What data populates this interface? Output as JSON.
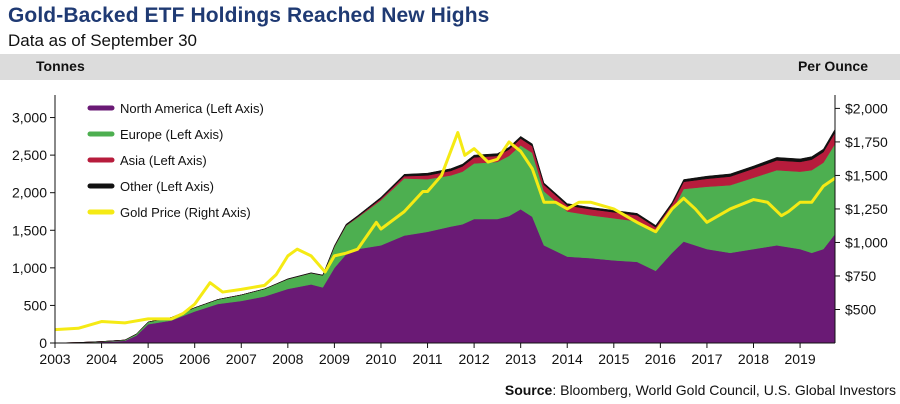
{
  "chart_data": {
    "type": "area",
    "title": "Gold-Backed ETF Holdings Reached New Highs",
    "subtitle": "Data as of September 30",
    "ylabel_left": "Tonnes",
    "ylabel_right": "Per Ounce",
    "source_label": "Source",
    "source_text": ": Bloomberg, World Gold Council, U.S. Global Investors",
    "xlim": [
      2003,
      2019.75
    ],
    "ylim_left": [
      0,
      3300
    ],
    "ylim_right": [
      250,
      2100
    ],
    "x_ticks": [
      2003,
      2004,
      2005,
      2006,
      2007,
      2008,
      2009,
      2010,
      2011,
      2012,
      2013,
      2014,
      2015,
      2016,
      2017,
      2018,
      2019
    ],
    "x_tick_labels": [
      "2003",
      "2004",
      "2005",
      "2006",
      "2007",
      "2008",
      "2009",
      "2010",
      "2011",
      "2012",
      "2013",
      "2014",
      "2015",
      "2016",
      "2017",
      "2018",
      "2019"
    ],
    "y_left_ticks": [
      0,
      500,
      1000,
      1500,
      2000,
      2500,
      3000
    ],
    "y_left_tick_labels": [
      "0",
      "500",
      "1,000",
      "1,500",
      "2,000",
      "2,500",
      "3,000"
    ],
    "y_right_ticks": [
      500,
      750,
      1000,
      1250,
      1500,
      1750,
      2000
    ],
    "y_right_tick_labels": [
      "$500",
      "$750",
      "$1,000",
      "$1,250",
      "$1,500",
      "$1,750",
      "$2,000"
    ],
    "legend": [
      {
        "label": "North America (Left Axis)",
        "color": "#6a1a75"
      },
      {
        "label": "Europe (Left Axis)",
        "color": "#4daf50"
      },
      {
        "label": "Asia (Left Axis)",
        "color": "#b71c3c"
      },
      {
        "label": "Other (Left Axis)",
        "color": "#111111"
      },
      {
        "label": "Gold Price (Right Axis)",
        "color": "#f5ea14"
      }
    ],
    "x": [
      2003.0,
      2003.5,
      2004.0,
      2004.5,
      2004.75,
      2005.0,
      2005.5,
      2006.0,
      2006.5,
      2007.0,
      2007.5,
      2008.0,
      2008.5,
      2008.75,
      2009.0,
      2009.25,
      2009.5,
      2010.0,
      2010.5,
      2011.0,
      2011.5,
      2011.75,
      2012.0,
      2012.5,
      2012.75,
      2013.0,
      2013.25,
      2013.5,
      2014.0,
      2014.5,
      2015.0,
      2015.5,
      2015.9,
      2016.25,
      2016.5,
      2017.0,
      2017.5,
      2018.0,
      2018.5,
      2019.0,
      2019.25,
      2019.5,
      2019.75
    ],
    "series": [
      {
        "name": "North America",
        "values": [
          0,
          5,
          15,
          30,
          100,
          250,
          300,
          420,
          520,
          560,
          620,
          720,
          780,
          740,
          1000,
          1180,
          1250,
          1300,
          1430,
          1480,
          1550,
          1580,
          1650,
          1650,
          1690,
          1780,
          1680,
          1300,
          1150,
          1130,
          1100,
          1080,
          960,
          1200,
          1350,
          1250,
          1200,
          1250,
          1300,
          1250,
          1200,
          1250,
          1450
        ]
      },
      {
        "name": "Europe",
        "values": [
          0,
          2,
          5,
          10,
          20,
          30,
          40,
          50,
          60,
          80,
          100,
          130,
          150,
          160,
          280,
          380,
          420,
          600,
          760,
          700,
          680,
          700,
          740,
          760,
          800,
          850,
          850,
          720,
          600,
          570,
          560,
          540,
          500,
          560,
          700,
          830,
          900,
          950,
          1000,
          1030,
          1100,
          1150,
          1200
        ]
      },
      {
        "name": "Asia",
        "values": [
          0,
          0,
          0,
          0,
          0,
          0,
          0,
          0,
          0,
          0,
          0,
          0,
          0,
          0,
          5,
          5,
          10,
          20,
          30,
          50,
          60,
          70,
          80,
          80,
          85,
          90,
          90,
          85,
          80,
          80,
          80,
          80,
          80,
          85,
          95,
          105,
          115,
          120,
          130,
          130,
          140,
          140,
          150
        ]
      },
      {
        "name": "Other",
        "values": [
          0,
          0,
          0,
          0,
          0,
          0,
          0,
          0,
          0,
          0,
          0,
          5,
          5,
          5,
          10,
          15,
          15,
          20,
          25,
          30,
          30,
          30,
          30,
          30,
          30,
          30,
          30,
          25,
          25,
          25,
          25,
          25,
          25,
          25,
          30,
          35,
          35,
          35,
          40,
          40,
          40,
          40,
          45
        ]
      },
      {
        "name": "Gold Price",
        "axis": "right",
        "x": [
          2003.0,
          2003.5,
          2004.0,
          2004.5,
          2005.0,
          2005.5,
          2005.75,
          2006.0,
          2006.33,
          2006.6,
          2007.0,
          2007.5,
          2007.75,
          2008.0,
          2008.2,
          2008.5,
          2008.8,
          2009.0,
          2009.25,
          2009.5,
          2009.9,
          2010.0,
          2010.5,
          2010.9,
          2011.0,
          2011.3,
          2011.65,
          2011.8,
          2012.0,
          2012.3,
          2012.5,
          2012.75,
          2013.0,
          2013.25,
          2013.5,
          2013.75,
          2014.0,
          2014.25,
          2014.5,
          2015.0,
          2015.25,
          2015.5,
          2015.9,
          2016.25,
          2016.5,
          2016.75,
          2017.0,
          2017.5,
          2018.0,
          2018.3,
          2018.6,
          2018.75,
          2019.0,
          2019.25,
          2019.5,
          2019.75
        ],
        "values": [
          350,
          360,
          410,
          400,
          430,
          430,
          470,
          540,
          700,
          630,
          650,
          680,
          760,
          900,
          950,
          900,
          780,
          900,
          920,
          950,
          1150,
          1100,
          1230,
          1380,
          1380,
          1500,
          1820,
          1650,
          1700,
          1600,
          1620,
          1750,
          1680,
          1550,
          1300,
          1300,
          1250,
          1300,
          1300,
          1250,
          1200,
          1150,
          1080,
          1250,
          1330,
          1250,
          1150,
          1250,
          1320,
          1300,
          1200,
          1230,
          1300,
          1300,
          1420,
          1480
        ]
      }
    ]
  }
}
